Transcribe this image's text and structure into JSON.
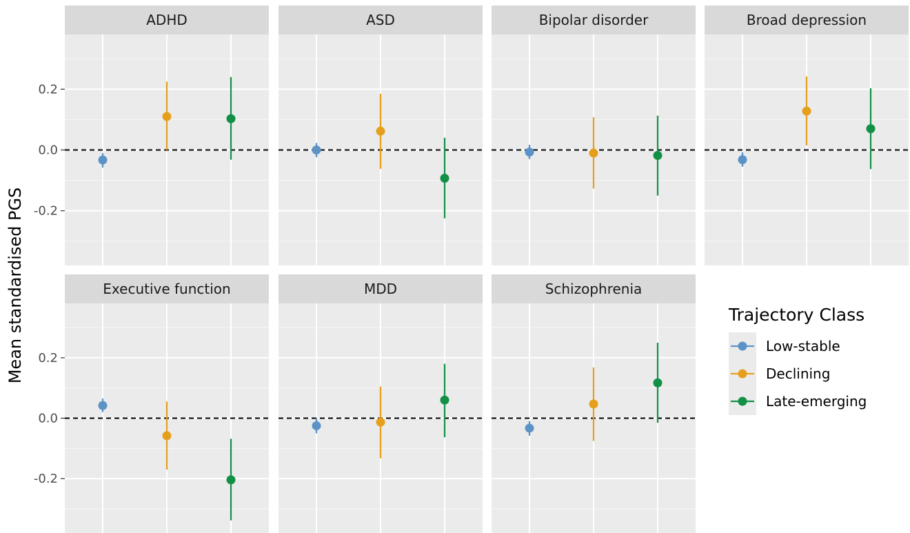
{
  "chart_data": {
    "type": "scatter",
    "subtype": "pointrange facets",
    "ylabel": "Mean standardised PGS",
    "ylim": [
      -0.38,
      0.38
    ],
    "y_ticks": [
      -0.2,
      0.0,
      0.2
    ],
    "y_tick_labels": [
      "-0.2",
      "0.0",
      "0.2"
    ],
    "reference_line": 0.0,
    "grid": true,
    "legend_title": "Trajectory Class",
    "legend_position": "right",
    "series": [
      {
        "name": "Low-stable",
        "color": "#5B93C7"
      },
      {
        "name": "Declining",
        "color": "#E69F1C"
      },
      {
        "name": "Late-emerging",
        "color": "#119046"
      }
    ],
    "panels": [
      {
        "title": "ADHD",
        "points": [
          {
            "series": "Low-stable",
            "y": -0.033,
            "lo": -0.058,
            "hi": -0.01
          },
          {
            "series": "Declining",
            "y": 0.11,
            "lo": 0.0,
            "hi": 0.225
          },
          {
            "series": "Late-emerging",
            "y": 0.103,
            "lo": -0.032,
            "hi": 0.24
          }
        ]
      },
      {
        "title": "ASD",
        "points": [
          {
            "series": "Low-stable",
            "y": 0.0,
            "lo": -0.024,
            "hi": 0.023
          },
          {
            "series": "Declining",
            "y": 0.062,
            "lo": -0.062,
            "hi": 0.185
          },
          {
            "series": "Late-emerging",
            "y": -0.093,
            "lo": -0.225,
            "hi": 0.04
          }
        ]
      },
      {
        "title": "Bipolar disorder",
        "points": [
          {
            "series": "Low-stable",
            "y": -0.007,
            "lo": -0.03,
            "hi": 0.017
          },
          {
            "series": "Declining",
            "y": -0.01,
            "lo": -0.127,
            "hi": 0.108
          },
          {
            "series": "Late-emerging",
            "y": -0.018,
            "lo": -0.15,
            "hi": 0.113
          }
        ]
      },
      {
        "title": "Broad depression",
        "points": [
          {
            "series": "Low-stable",
            "y": -0.032,
            "lo": -0.055,
            "hi": -0.008
          },
          {
            "series": "Declining",
            "y": 0.128,
            "lo": 0.015,
            "hi": 0.242
          },
          {
            "series": "Late-emerging",
            "y": 0.07,
            "lo": -0.063,
            "hi": 0.203
          }
        ]
      },
      {
        "title": "Executive function",
        "points": [
          {
            "series": "Low-stable",
            "y": 0.042,
            "lo": 0.02,
            "hi": 0.065
          },
          {
            "series": "Declining",
            "y": -0.058,
            "lo": -0.17,
            "hi": 0.055
          },
          {
            "series": "Late-emerging",
            "y": -0.204,
            "lo": -0.338,
            "hi": -0.068
          }
        ]
      },
      {
        "title": "MDD",
        "points": [
          {
            "series": "Low-stable",
            "y": -0.025,
            "lo": -0.05,
            "hi": 0.0
          },
          {
            "series": "Declining",
            "y": -0.013,
            "lo": -0.133,
            "hi": 0.105
          },
          {
            "series": "Late-emerging",
            "y": 0.06,
            "lo": -0.063,
            "hi": 0.18
          }
        ]
      },
      {
        "title": "Schizophrenia",
        "points": [
          {
            "series": "Low-stable",
            "y": -0.033,
            "lo": -0.058,
            "hi": -0.01
          },
          {
            "series": "Declining",
            "y": 0.047,
            "lo": -0.075,
            "hi": 0.168
          },
          {
            "series": "Late-emerging",
            "y": 0.117,
            "lo": -0.015,
            "hi": 0.25
          }
        ]
      }
    ]
  }
}
